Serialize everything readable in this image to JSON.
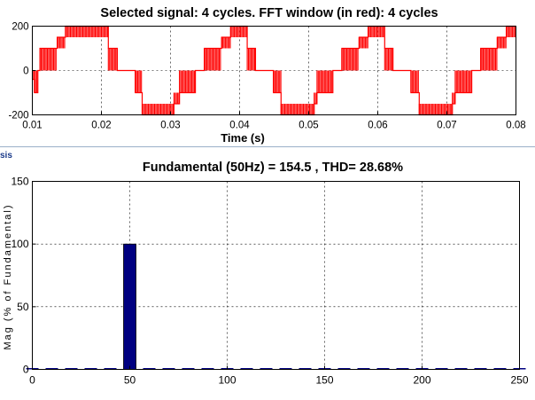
{
  "side_label": "sis",
  "chart_data": [
    {
      "type": "line",
      "title": "Selected signal: 4 cycles. FFT window (in red): 4 cycles",
      "xlabel": "Time (s)",
      "ylabel": "",
      "xlim": [
        0.01,
        0.08
      ],
      "ylim": [
        -200,
        200
      ],
      "xticks": [
        0.01,
        0.02,
        0.03,
        0.04,
        0.05,
        0.06,
        0.07,
        0.08
      ],
      "xtick_labels": [
        "0.01",
        "0.02",
        "0.03",
        "0.04",
        "0.05",
        "0.06",
        "0.07",
        "0.08"
      ],
      "yticks": [
        -200,
        0,
        200
      ],
      "ytick_labels": [
        "-200",
        "0",
        "200"
      ],
      "grid": true,
      "line_color": "#ff0000",
      "series": [
        {
          "name": "",
          "steps": [
            [
              0.01,
              0.0103,
              -40
            ],
            [
              0.0103,
              0.0108,
              -100
            ],
            [
              0.0108,
              0.0111,
              0
            ],
            [
              0.0111,
              0.0136,
              100
            ],
            [
              0.0136,
              0.0148,
              150
            ],
            [
              0.0148,
              0.021,
              200
            ],
            [
              0.021,
              0.0223,
              100
            ],
            [
              0.0223,
              0.0249,
              0
            ],
            [
              0.0249,
              0.0259,
              -100
            ],
            [
              0.0259,
              0.0305,
              -200
            ],
            [
              0.0305,
              0.0313,
              -150
            ],
            [
              0.0313,
              0.0336,
              -100
            ],
            [
              0.0336,
              0.0349,
              0
            ],
            [
              0.0349,
              0.0374,
              100
            ],
            [
              0.0374,
              0.0387,
              150
            ],
            [
              0.0387,
              0.0411,
              200
            ],
            [
              0.0411,
              0.0423,
              100
            ],
            [
              0.0423,
              0.0449,
              0
            ],
            [
              0.0449,
              0.046,
              -100
            ],
            [
              0.046,
              0.0508,
              -200
            ],
            [
              0.0508,
              0.0512,
              -150
            ],
            [
              0.0512,
              0.0535,
              -100
            ],
            [
              0.0535,
              0.0548,
              0
            ],
            [
              0.0548,
              0.0573,
              100
            ],
            [
              0.0573,
              0.0586,
              150
            ],
            [
              0.0586,
              0.061,
              200
            ],
            [
              0.061,
              0.0622,
              100
            ],
            [
              0.0622,
              0.0648,
              0
            ],
            [
              0.0648,
              0.066,
              -100
            ],
            [
              0.066,
              0.0708,
              -200
            ],
            [
              0.0708,
              0.0712,
              -150
            ],
            [
              0.0712,
              0.0736,
              -100
            ],
            [
              0.0736,
              0.0749,
              0
            ],
            [
              0.0749,
              0.0773,
              100
            ],
            [
              0.0773,
              0.0786,
              150
            ],
            [
              0.0786,
              0.08,
              200
            ]
          ]
        }
      ]
    },
    {
      "type": "bar",
      "title": "Fundamental (50Hz) = 154.5 , THD= 28.68%",
      "xlabel": "",
      "ylabel": "Mag (% of Fundamental)",
      "xlim": [
        0,
        250
      ],
      "ylim": [
        0,
        150
      ],
      "xticks": [
        0,
        50,
        100,
        150,
        200,
        250
      ],
      "xtick_labels": [
        "0",
        "50",
        "100",
        "150",
        "200",
        "250"
      ],
      "yticks": [
        0,
        50,
        100,
        150
      ],
      "ytick_labels": [
        "0",
        "50",
        "100",
        "150"
      ],
      "grid": true,
      "bar_color": "#000080",
      "x": [
        0,
        10,
        20,
        30,
        40,
        50,
        60,
        70,
        80,
        90,
        100,
        110,
        120,
        130,
        140,
        150,
        160,
        170,
        180,
        190,
        200,
        210,
        220,
        230,
        240,
        250
      ],
      "values": [
        1,
        0.6,
        0.6,
        0.6,
        0.6,
        100,
        0.6,
        0.6,
        0.6,
        0.6,
        0.6,
        0.6,
        0.6,
        0.6,
        0.6,
        0.6,
        0.6,
        0.6,
        0.6,
        0.6,
        0.6,
        0.6,
        0.6,
        0.6,
        0.6,
        0.6
      ]
    }
  ]
}
